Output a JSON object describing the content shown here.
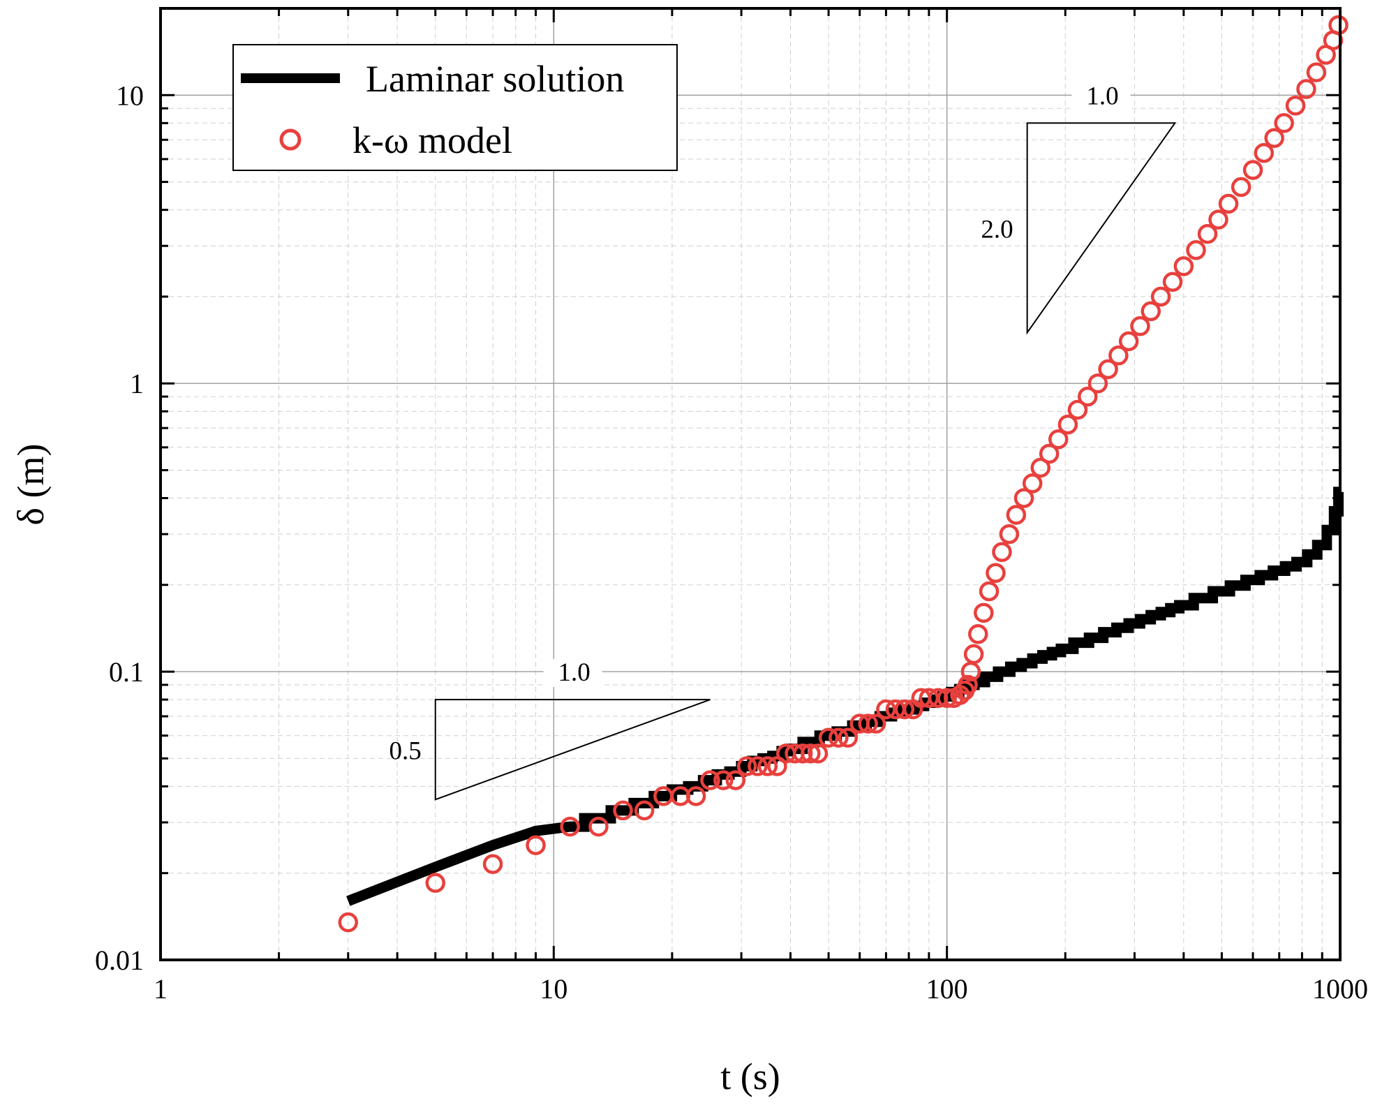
{
  "chart_data": {
    "type": "line",
    "xlabel": "t (s)",
    "ylabel": "δ (m)",
    "xscale": "log",
    "yscale": "log",
    "xlim": [
      1,
      1000
    ],
    "ylim": [
      0.01,
      20
    ],
    "grid": true,
    "x_ticks": [
      "1",
      "10",
      "100",
      "1000"
    ],
    "y_ticks": [
      "0.01",
      "0.1",
      "1",
      "10"
    ],
    "legend_position": "top-left",
    "series": [
      {
        "name": "Laminar solution",
        "style": "thick-step-line",
        "color": "#000000",
        "x": [
          3,
          5,
          7,
          9,
          11,
          13,
          15,
          17,
          19,
          21,
          23,
          25,
          27,
          29,
          31,
          33,
          35,
          37,
          39,
          41,
          45,
          50,
          55,
          60,
          65,
          70,
          75,
          80,
          85,
          90,
          95,
          100,
          105,
          110,
          115,
          120,
          130,
          140,
          150,
          160,
          170,
          180,
          190,
          200,
          220,
          240,
          260,
          280,
          300,
          320,
          340,
          360,
          380,
          400,
          450,
          500,
          550,
          600,
          650,
          700,
          750,
          800,
          850,
          900,
          950,
          980,
          1000
        ],
        "y": [
          0.016,
          0.021,
          0.025,
          0.028,
          0.029,
          0.031,
          0.033,
          0.035,
          0.037,
          0.039,
          0.04,
          0.042,
          0.044,
          0.045,
          0.047,
          0.049,
          0.05,
          0.051,
          0.053,
          0.054,
          0.057,
          0.06,
          0.062,
          0.065,
          0.067,
          0.07,
          0.072,
          0.074,
          0.076,
          0.078,
          0.08,
          0.082,
          0.085,
          0.087,
          0.09,
          0.092,
          0.096,
          0.1,
          0.104,
          0.107,
          0.111,
          0.114,
          0.117,
          0.12,
          0.126,
          0.131,
          0.137,
          0.142,
          0.147,
          0.152,
          0.157,
          0.161,
          0.166,
          0.17,
          0.18,
          0.19,
          0.199,
          0.208,
          0.216,
          0.224,
          0.232,
          0.24,
          0.255,
          0.275,
          0.31,
          0.36,
          0.42
        ]
      },
      {
        "name": "k-ω model",
        "style": "open-circle",
        "color": "#e8403d",
        "x": [
          3,
          5,
          7,
          9,
          11,
          13,
          15,
          17,
          19,
          21,
          23,
          25,
          27,
          29,
          31,
          33,
          35,
          37,
          39,
          41,
          43,
          45,
          47,
          50,
          53,
          56,
          60,
          63,
          66,
          70,
          74,
          78,
          82,
          86,
          90,
          95,
          100,
          104,
          108,
          111,
          113,
          115,
          117,
          120,
          124,
          128,
          133,
          138,
          144,
          150,
          157,
          165,
          173,
          182,
          192,
          203,
          215,
          228,
          242,
          257,
          273,
          290,
          310,
          330,
          350,
          375,
          400,
          430,
          460,
          490,
          520,
          560,
          600,
          640,
          680,
          720,
          770,
          820,
          870,
          920,
          960,
          990
        ],
        "y": [
          0.0135,
          0.0185,
          0.0215,
          0.025,
          0.029,
          0.029,
          0.033,
          0.033,
          0.037,
          0.037,
          0.037,
          0.042,
          0.042,
          0.042,
          0.047,
          0.047,
          0.047,
          0.047,
          0.052,
          0.052,
          0.052,
          0.052,
          0.052,
          0.059,
          0.059,
          0.059,
          0.066,
          0.066,
          0.066,
          0.074,
          0.074,
          0.074,
          0.074,
          0.081,
          0.081,
          0.081,
          0.081,
          0.081,
          0.083,
          0.086,
          0.09,
          0.1,
          0.115,
          0.135,
          0.16,
          0.19,
          0.22,
          0.26,
          0.3,
          0.35,
          0.4,
          0.45,
          0.51,
          0.57,
          0.64,
          0.72,
          0.81,
          0.9,
          1.0,
          1.12,
          1.25,
          1.4,
          1.58,
          1.78,
          2.0,
          2.25,
          2.55,
          2.9,
          3.3,
          3.7,
          4.2,
          4.8,
          5.5,
          6.3,
          7.1,
          8.0,
          9.2,
          10.5,
          12.0,
          13.8,
          15.5,
          17.5
        ]
      }
    ],
    "annotations": [
      {
        "type": "slope-triangle",
        "run_label": "1.0",
        "rise_label": "0.5",
        "x": [
          5,
          25
        ],
        "y_bottom": 0.036,
        "y_top": 0.08
      },
      {
        "type": "slope-triangle",
        "run_label": "1.0",
        "rise_label": "2.0",
        "x": [
          160,
          380
        ],
        "y_bottom": 1.5,
        "y_top": 8.0
      }
    ]
  }
}
